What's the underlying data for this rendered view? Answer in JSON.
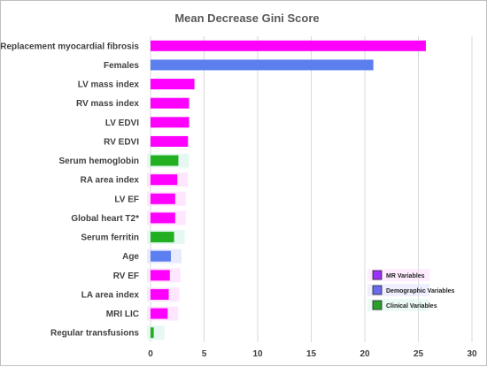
{
  "chart_data": {
    "type": "bar",
    "orientation": "horizontal",
    "title": "Mean Decrease Gini Score",
    "xlabel": "",
    "ylabel": "",
    "xlim": [
      0,
      30
    ],
    "xticks": [
      "0",
      "5",
      "10",
      "15",
      "20",
      "25",
      "30"
    ],
    "grid": "vertical gridlines",
    "legend_position": "bottom-right",
    "categories": [
      "Replacement myocardial fibrosis",
      "Females",
      "LV mass index",
      "RV mass index",
      "LV EDVI",
      "RV EDVI",
      "Serum hemoglobin",
      "RA area index",
      "LV EF",
      "Global heart T2*",
      "Serum ferritin",
      "Age",
      "RV EF",
      "LA area index",
      "MRI LIC",
      "Regular transfusions"
    ],
    "values": [
      25.7,
      20.8,
      4.1,
      3.6,
      3.6,
      3.5,
      2.6,
      2.5,
      2.3,
      2.3,
      2.2,
      1.9,
      1.8,
      1.7,
      1.6,
      0.3
    ],
    "groups": [
      "MR",
      "Demographic",
      "MR",
      "MR",
      "MR",
      "MR",
      "Clinical",
      "MR",
      "MR",
      "MR",
      "Clinical",
      "Demographic",
      "MR",
      "MR",
      "MR",
      "Clinical"
    ],
    "legend": [
      {
        "key": "MR",
        "label": "MR Variables",
        "color": "#9b30ff"
      },
      {
        "key": "Demographic",
        "label": "Demographic Variables",
        "color": "#6a6af0"
      },
      {
        "key": "Clinical",
        "label": "Clinical Variables",
        "color": "#2ca02c"
      }
    ],
    "bar_colors": {
      "MR": "#ff00ff",
      "Demographic": "#5b7fef",
      "Clinical": "#22b022"
    },
    "highlight_colors": {
      "MR": "#ffd6ff",
      "Demographic": "#dcdcff",
      "Clinical": "#d4f4ea"
    }
  }
}
